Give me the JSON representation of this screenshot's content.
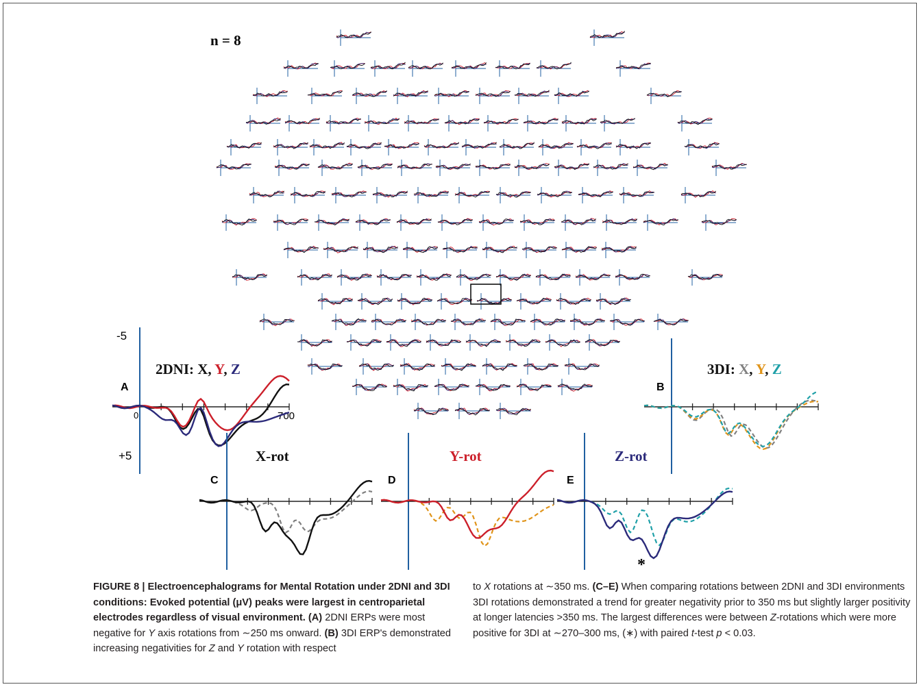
{
  "figure": {
    "n_label": "n = 8",
    "panel_a_title": {
      "prefix": "2DNI: ",
      "x": "X",
      "sep1": ", ",
      "y": "Y",
      "sep2": ", ",
      "z": "Z"
    },
    "panel_b_title": {
      "prefix": "3DI: ",
      "x": "X",
      "sep1": ", ",
      "y": "Y",
      "sep2": ", ",
      "z": "Z"
    },
    "panel_letters": {
      "a": "A",
      "b": "B",
      "c": "C",
      "d": "D",
      "e": "E"
    },
    "axis_labels": {
      "minus5": "-5",
      "zero": "0",
      "t700": "700",
      "plus5": "+5"
    },
    "row_titles": {
      "xrot": "X-rot",
      "yrot": "Y-rot",
      "zrot": "Z-rot"
    },
    "asterisk": "*",
    "colors": {
      "x_2dni": "#111111",
      "y_2dni": "#cc1f2a",
      "z_2dni": "#2b2a7a",
      "x_3di": "#808080",
      "y_3di": "#e0941a",
      "z_3di": "#1fa0a8",
      "axis": "#1f5fa0"
    }
  },
  "caption": {
    "label": "FIGURE 8 | Electroencephalograms for Mental Rotation under 2DNI and 3DI conditions: Evoked potential (μV) peaks were largest in centroparietal electrodes regardless of visual environment.",
    "a_tag": "(A)",
    "a_text": " 2DNI ERPs were most negative for ",
    "a_y": "Y",
    "a_text2": " axis rotations from ∼250 ms onward. ",
    "b_tag": "(B)",
    "b_text": " 3DI ERP's demonstrated increasing negativities for ",
    "b_z": "Z",
    "b_and": " and ",
    "b_y": "Y",
    "b_text2": " rotation with respect",
    "r1_pre": "to ",
    "r1_x": "X",
    "r1_post": " rotations at ∼350 ms. ",
    "ce_tag": "(C–E)",
    "ce_text": " When comparing rotations between 2DNI and 3DI environments 3DI rotations demonstrated a trend for greater negativity prior to 350 ms but slightly larger positivity at longer latencies >350 ms. The largest differences were between ",
    "ce_z": "Z",
    "ce_text2": "-rotations which were more positive for 3DI at ∼270–300 ms, (∗) with paired ",
    "ce_t": "t",
    "ce_text3": "-test ",
    "ce_p": "p",
    "ce_text4": " < 0.03."
  }
}
